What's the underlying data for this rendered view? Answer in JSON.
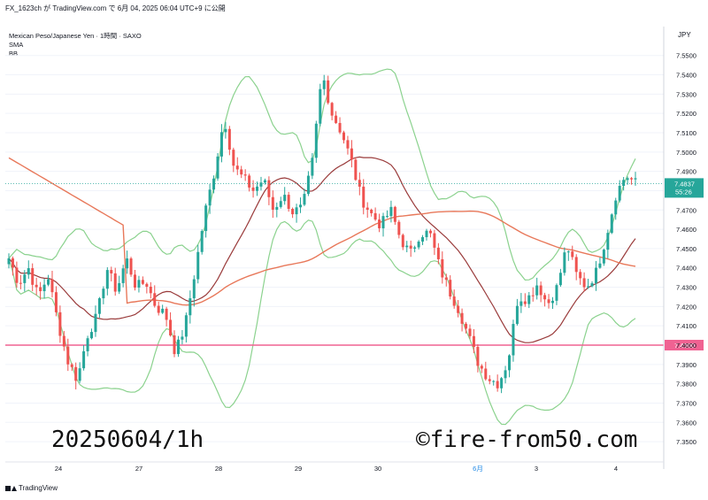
{
  "header": {
    "publish_line": "FX_1623ch が TradingView.com で 6月 04, 2025 06:04 UTC+9 に公開"
  },
  "legend": {
    "symbol": "Mexican Peso/Japanese Yen · 1時間 · SAXO",
    "ind1": "SMA",
    "ind2": "BB"
  },
  "footer": {
    "brand": "TradingView"
  },
  "overlay": {
    "left_text": "20250604/1h",
    "right_text": "©fire-from50.com"
  },
  "colors": {
    "up": "#26a69a",
    "down": "#ef5350",
    "bb": "#8bd28e",
    "bb_basis": "#9a3b3b",
    "sma": "#e8785a",
    "hline": "#f06292"
  },
  "chart_data": {
    "type": "candlestick",
    "currency": "JPY",
    "ylim": [
      7.345,
      7.565
    ],
    "y_ticks": [
      "7.5500",
      "7.5400",
      "7.5300",
      "7.5200",
      "7.5100",
      "7.5000",
      "7.4900",
      "7.4800",
      "7.4700",
      "7.4600",
      "7.4500",
      "7.4400",
      "7.4300",
      "7.4200",
      "7.4100",
      "7.4000",
      "7.3900",
      "7.3800",
      "7.3700",
      "7.3600",
      "7.3500"
    ],
    "x_ticks": [
      "24",
      "27",
      "28",
      "29",
      "30",
      "6月",
      "3",
      "4"
    ],
    "last_price": "7.4837",
    "countdown": "55:26",
    "horizontal_level": "7.4000",
    "ohlc_anchors": [
      7.445,
      7.432,
      7.44,
      7.425,
      7.436,
      7.412,
      7.392,
      7.382,
      7.405,
      7.415,
      7.44,
      7.428,
      7.445,
      7.43,
      7.433,
      7.42,
      7.416,
      7.396,
      7.41,
      7.438,
      7.468,
      7.49,
      7.518,
      7.492,
      7.486,
      7.48,
      7.486,
      7.47,
      7.478,
      7.469,
      7.471,
      7.495,
      7.541,
      7.52,
      7.51,
      7.495,
      7.476,
      7.468,
      7.462,
      7.47,
      7.455,
      7.447,
      7.458,
      7.458,
      7.44,
      7.428,
      7.418,
      7.404,
      7.39,
      7.383,
      7.38,
      7.392,
      7.425,
      7.424,
      7.432,
      7.421,
      7.43,
      7.452,
      7.436,
      7.43,
      7.438,
      7.456,
      7.478,
      7.488,
      7.484
    ]
  }
}
